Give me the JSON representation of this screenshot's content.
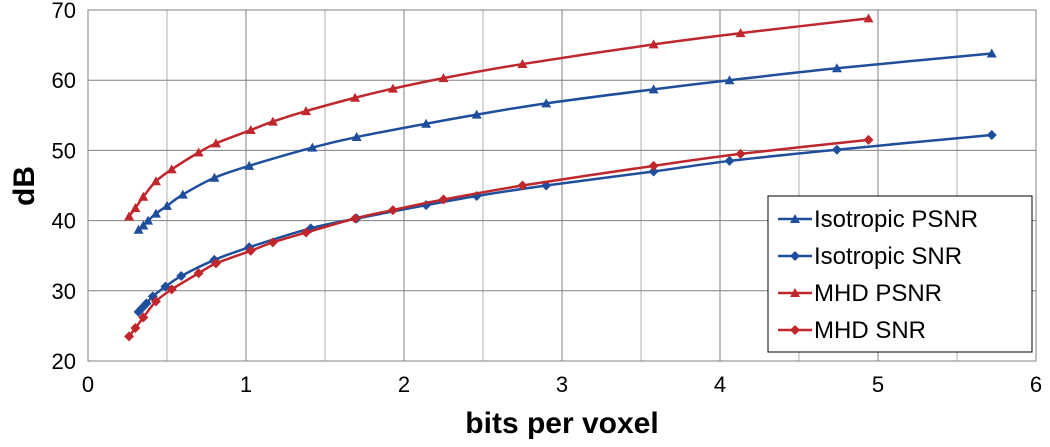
{
  "chart_data": {
    "type": "line",
    "title": "",
    "xlabel": "bits per voxel",
    "ylabel": "dB",
    "xlim": [
      0,
      6
    ],
    "ylim": [
      20,
      70
    ],
    "xticks": [
      0,
      1,
      2,
      3,
      4,
      5,
      6
    ],
    "yticks": [
      20,
      30,
      40,
      50,
      60,
      70
    ],
    "grid": true,
    "legend_position": "bottom-right",
    "series": [
      {
        "name": "Isotropic PSNR",
        "color": "#1f4e9c",
        "marker": "triangle",
        "x": [
          0.32,
          0.35,
          0.38,
          0.43,
          0.5,
          0.6,
          0.8,
          1.02,
          1.42,
          1.7,
          2.14,
          2.46,
          2.9,
          3.58,
          4.06,
          4.74,
          5.72
        ],
        "y": [
          38.7,
          39.3,
          40.0,
          41.0,
          42.1,
          43.7,
          46.1,
          47.8,
          50.4,
          51.9,
          53.8,
          55.1,
          56.7,
          58.7,
          60.0,
          61.7,
          63.8
        ]
      },
      {
        "name": "Isotropic SNR",
        "color": "#1f4e9c",
        "marker": "diamond",
        "x": [
          0.32,
          0.34,
          0.37,
          0.41,
          0.49,
          0.59,
          0.8,
          1.02,
          1.41,
          1.7,
          2.14,
          2.46,
          2.9,
          3.58,
          4.06,
          4.74,
          5.72
        ],
        "y": [
          27.0,
          27.5,
          28.2,
          29.2,
          30.6,
          32.1,
          34.4,
          36.2,
          38.9,
          40.3,
          42.2,
          43.5,
          45.0,
          47.0,
          48.5,
          50.1,
          52.2
        ]
      },
      {
        "name": "MHD PSNR",
        "color": "#c0272d",
        "marker": "triangle",
        "x": [
          0.26,
          0.3,
          0.35,
          0.43,
          0.53,
          0.7,
          0.81,
          1.03,
          1.17,
          1.38,
          1.69,
          1.93,
          2.25,
          2.75,
          3.58,
          4.13,
          4.94
        ],
        "y": [
          40.6,
          41.8,
          43.4,
          45.6,
          47.3,
          49.7,
          51.0,
          52.9,
          54.1,
          55.6,
          57.5,
          58.8,
          60.3,
          62.3,
          65.1,
          66.7,
          68.8
        ]
      },
      {
        "name": "MHD SNR",
        "color": "#c0272d",
        "marker": "diamond",
        "x": [
          0.26,
          0.3,
          0.35,
          0.43,
          0.53,
          0.7,
          0.81,
          1.03,
          1.17,
          1.38,
          1.69,
          1.93,
          2.25,
          2.75,
          3.58,
          4.13,
          4.94
        ],
        "y": [
          23.5,
          24.7,
          26.2,
          28.5,
          30.2,
          32.5,
          33.9,
          35.7,
          36.9,
          38.3,
          40.3,
          41.5,
          43.0,
          45.0,
          47.8,
          49.5,
          51.5
        ]
      }
    ]
  }
}
